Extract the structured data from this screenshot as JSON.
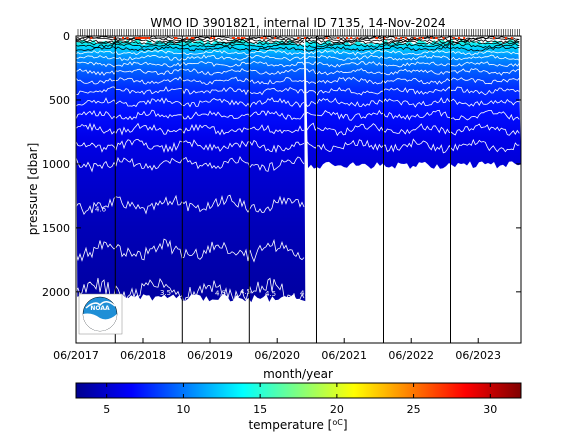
{
  "chart_data": {
    "type": "heatmap",
    "title": "WMO ID 3901821, internal ID 7135, 14-Nov-2024",
    "xlabel": "month/year",
    "ylabel": "pressure [dbar]",
    "x_range": [
      "2017-06-01",
      "2024-01-20"
    ],
    "y_range": [
      0,
      2400
    ],
    "y_reversed": true,
    "x_tick_labels": [
      "06/2017",
      "06/2018",
      "06/2019",
      "06/2020",
      "06/2021",
      "06/2022",
      "06/2023"
    ],
    "x_ticks": [
      "2017-06-01",
      "2018-06-01",
      "2019-06-01",
      "2020-06-01",
      "2021-06-01",
      "2022-06-01",
      "2023-06-01"
    ],
    "y_ticks": [
      0,
      500,
      1000,
      1500,
      2000
    ],
    "profile_max_depth": [
      {
        "from": "2017-06-01",
        "to": "2020-11-01",
        "depth": 2050
      },
      {
        "from": "2020-11-01",
        "to": "2024-01-20",
        "depth": 1010
      }
    ],
    "isotherm_labels": [
      "4.6",
      "4.5",
      "4.5",
      "4.5",
      "4.5",
      "3.5"
    ],
    "colorbar": {
      "label": "temperature [",
      "label_unit": "oC",
      "label_close": "]",
      "range": [
        3,
        32
      ],
      "ticks": [
        5,
        10,
        15,
        20,
        25,
        30
      ],
      "colormap": "jet"
    },
    "temperature_depth_profile": [
      {
        "depth": 0,
        "temp": 16
      },
      {
        "depth": 30,
        "temp": 15
      },
      {
        "depth": 80,
        "temp": 13
      },
      {
        "depth": 150,
        "temp": 11
      },
      {
        "depth": 250,
        "temp": 9.5
      },
      {
        "depth": 400,
        "temp": 8
      },
      {
        "depth": 600,
        "temp": 7
      },
      {
        "depth": 800,
        "temp": 6
      },
      {
        "depth": 1000,
        "temp": 5.5
      },
      {
        "depth": 1500,
        "temp": 4.6
      },
      {
        "depth": 2000,
        "temp": 4.0
      }
    ]
  },
  "logo": {
    "name": "NOAA"
  }
}
